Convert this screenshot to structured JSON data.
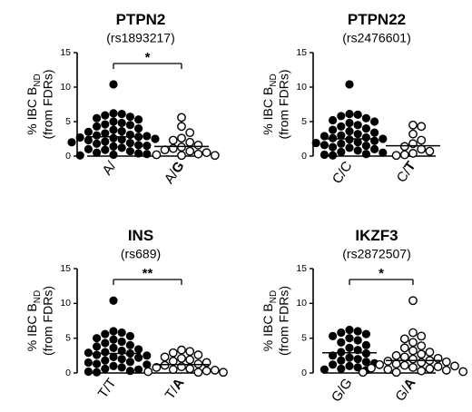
{
  "chart_data": [
    {
      "type": "scatter",
      "title": "PTPN2",
      "subtitle": "(rs1893217)",
      "ylabel_main": "% IBC B",
      "ylabel_sub": "ND",
      "ylabel_line2": "(from FDRs)",
      "categories": [
        {
          "label": "A/",
          "bold": "",
          "suffix_bold": ""
        },
        {
          "label": "A/",
          "bold": "G"
        }
      ],
      "ylim": [
        0,
        15
      ],
      "yticks": [
        "0",
        "5",
        "10",
        "15"
      ],
      "significance": "*",
      "series": [
        {
          "filled": true,
          "mean": 2.8,
          "values": [
            10.4,
            6.2,
            6.1,
            5.9,
            5.7,
            5.5,
            5.3,
            5.0,
            4.8,
            4.6,
            4.5,
            4.3,
            4.0,
            3.8,
            3.6,
            3.5,
            3.3,
            3.1,
            3.0,
            2.9,
            2.8,
            2.7,
            2.6,
            2.5,
            2.4,
            2.3,
            2.1,
            2.0,
            1.9,
            1.8,
            1.6,
            1.5,
            1.4,
            1.2,
            1.0,
            0.9,
            0.7,
            0.5,
            0.4,
            0.3,
            0.2,
            0.1
          ]
        },
        {
          "filled": false,
          "mean": 1.4,
          "values": [
            5.6,
            4.3,
            3.4,
            2.6,
            2.3,
            2.0,
            1.6,
            1.3,
            1.1,
            0.9,
            0.7,
            0.5,
            0.3,
            0.2,
            0.1,
            0.1
          ]
        }
      ]
    },
    {
      "type": "scatter",
      "title": "PTPN22",
      "subtitle": "(rs2476601)",
      "ylabel_main": "% IBC B",
      "ylabel_sub": "ND",
      "ylabel_line2": "(from FDRs)",
      "categories": [
        {
          "label": "C/C",
          "bold": ""
        },
        {
          "label": "C/",
          "bold": "T"
        }
      ],
      "ylim": [
        0,
        15
      ],
      "yticks": [
        "0",
        "5",
        "10",
        "15"
      ],
      "significance": "",
      "series": [
        {
          "filled": true,
          "mean": 2.5,
          "values": [
            10.4,
            6.1,
            6.0,
            5.8,
            5.5,
            5.2,
            5.0,
            4.8,
            4.5,
            4.3,
            4.0,
            3.8,
            3.6,
            3.4,
            3.2,
            3.0,
            2.9,
            2.7,
            2.6,
            2.5,
            2.4,
            2.2,
            2.0,
            1.9,
            1.8,
            1.6,
            1.5,
            1.3,
            1.2,
            1.0,
            0.8,
            0.6,
            0.5,
            0.3,
            0.2,
            0.1
          ]
        },
        {
          "filled": false,
          "mean": 1.5,
          "values": [
            4.5,
            4.3,
            3.2,
            2.3,
            1.8,
            1.4,
            1.0,
            0.7,
            0.4,
            0.2,
            0.1
          ]
        }
      ]
    },
    {
      "type": "scatter",
      "title": "INS",
      "subtitle": "(rs689)",
      "ylabel_main": "% IBC B",
      "ylabel_sub": "ND",
      "ylabel_line2": "(from FDRs)",
      "categories": [
        {
          "label": "T/T",
          "bold": ""
        },
        {
          "label": "T/",
          "bold": "A"
        }
      ],
      "ylim": [
        0,
        15
      ],
      "yticks": [
        "0",
        "5",
        "10",
        "15"
      ],
      "significance": "**",
      "series": [
        {
          "filled": true,
          "mean": 2.8,
          "values": [
            10.4,
            6.0,
            5.8,
            5.6,
            5.3,
            5.0,
            4.8,
            4.5,
            4.3,
            4.0,
            3.8,
            3.6,
            3.4,
            3.2,
            3.0,
            2.9,
            2.8,
            2.6,
            2.5,
            2.3,
            2.2,
            2.0,
            1.8,
            1.6,
            1.5,
            1.3,
            1.2,
            1.0,
            0.8,
            0.6,
            0.5,
            0.3,
            0.2,
            0.1
          ]
        },
        {
          "filled": false,
          "mean": 1.2,
          "values": [
            3.3,
            3.1,
            2.9,
            2.6,
            2.3,
            2.1,
            1.9,
            1.7,
            1.5,
            1.3,
            1.1,
            0.9,
            0.8,
            0.6,
            0.5,
            0.4,
            0.3,
            0.2,
            0.1,
            0.1
          ]
        }
      ]
    },
    {
      "type": "scatter",
      "title": "IKZF3",
      "subtitle": "(rs2872507)",
      "ylabel_main": "% IBC B",
      "ylabel_sub": "ND",
      "ylabel_line2": "(from FDRs)",
      "categories": [
        {
          "label": "G/G",
          "bold": ""
        },
        {
          "label": "G/",
          "bold": "A"
        }
      ],
      "ylim": [
        0,
        15
      ],
      "yticks": [
        "0",
        "5",
        "10",
        "15"
      ],
      "significance": "*",
      "series": [
        {
          "filled": true,
          "mean": 2.9,
          "values": [
            6.2,
            6.0,
            5.8,
            5.6,
            5.3,
            5.0,
            4.7,
            4.4,
            4.0,
            3.6,
            3.3,
            3.0,
            2.8,
            2.5,
            2.2,
            2.0,
            1.8,
            1.6,
            1.4,
            1.2,
            1.0,
            0.8,
            0.6,
            0.5,
            0.4
          ]
        },
        {
          "filled": false,
          "mean": 1.8,
          "values": [
            10.4,
            5.8,
            5.3,
            4.9,
            4.4,
            3.9,
            3.6,
            3.2,
            3.0,
            2.7,
            2.5,
            2.3,
            2.1,
            2.0,
            1.8,
            1.7,
            1.6,
            1.5,
            1.3,
            1.2,
            1.1,
            1.0,
            0.9,
            0.8,
            0.7,
            0.6,
            0.5,
            0.4,
            0.3,
            0.2,
            0.1,
            0.1
          ]
        }
      ]
    }
  ]
}
